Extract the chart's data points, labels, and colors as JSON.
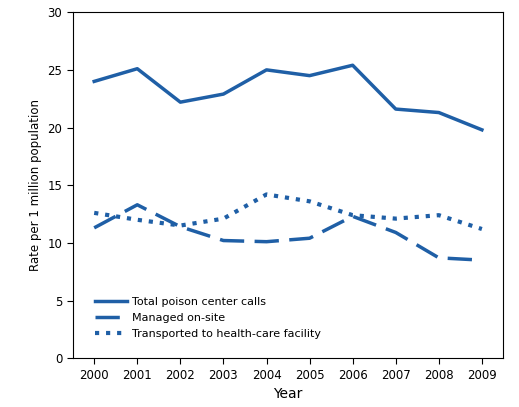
{
  "years": [
    2000,
    2001,
    2002,
    2003,
    2004,
    2005,
    2006,
    2007,
    2008,
    2009
  ],
  "total_calls": [
    24.0,
    25.1,
    22.2,
    22.9,
    25.0,
    24.5,
    25.4,
    21.6,
    21.3,
    19.8
  ],
  "managed_onsite": [
    11.3,
    13.3,
    11.4,
    10.2,
    10.1,
    10.4,
    12.3,
    10.9,
    8.7,
    8.5
  ],
  "transported": [
    12.6,
    12.0,
    11.5,
    12.1,
    14.2,
    13.6,
    12.4,
    12.1,
    12.4,
    11.2
  ],
  "line_color": "#1f5fa6",
  "xlim": [
    1999.5,
    2009.5
  ],
  "ylim": [
    0,
    30
  ],
  "yticks": [
    0,
    5,
    10,
    15,
    20,
    25,
    30
  ],
  "xlabel": "Year",
  "ylabel": "Rate per 1 million population",
  "legend_labels": [
    "Total poison center calls",
    "Managed on-site",
    "Transported to health-care facility"
  ],
  "linewidth": 2.0,
  "figsize": [
    5.19,
    4.07
  ],
  "dpi": 100
}
